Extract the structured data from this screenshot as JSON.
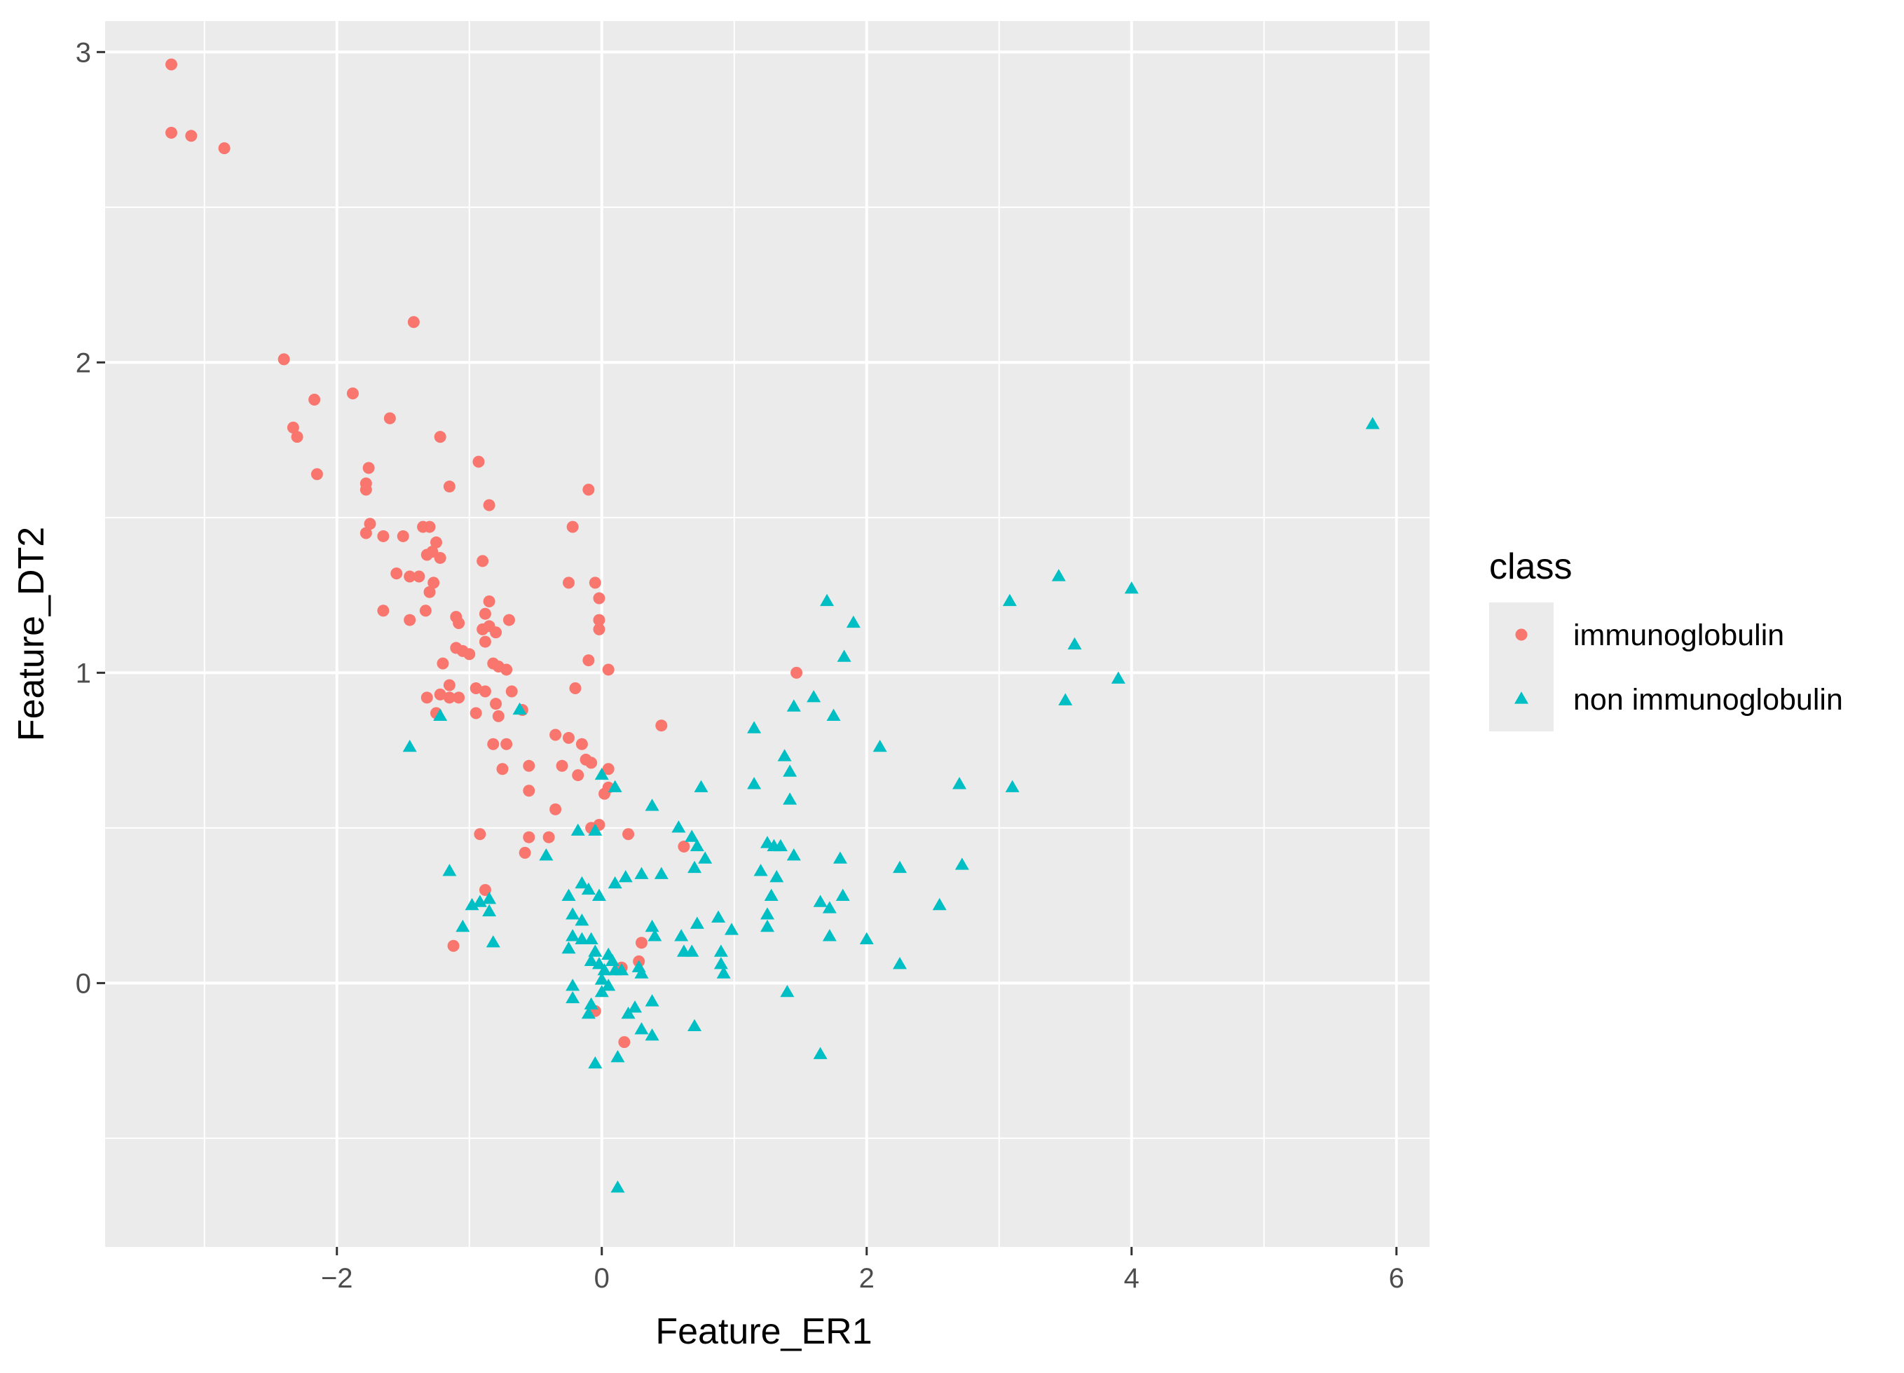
{
  "chart_data": {
    "type": "scatter",
    "xlabel": "Feature_ER1",
    "ylabel": "Feature_DT2",
    "xlim": [
      -3.75,
      6.25
    ],
    "ylim": [
      -0.85,
      3.1
    ],
    "x_ticks": [
      -2,
      0,
      2,
      4,
      6
    ],
    "y_ticks": [
      0,
      1,
      2,
      3
    ],
    "grid": true,
    "legend": {
      "title": "class",
      "position": "right"
    },
    "series": [
      {
        "name": "immunoglobulin",
        "color": "#f8766d",
        "shape": "circle",
        "points": [
          [
            -3.25,
            2.96
          ],
          [
            -3.25,
            2.74
          ],
          [
            -3.1,
            2.73
          ],
          [
            -2.85,
            2.69
          ],
          [
            -1.42,
            2.13
          ],
          [
            -2.4,
            2.01
          ],
          [
            -2.17,
            1.88
          ],
          [
            -1.88,
            1.9
          ],
          [
            -1.6,
            1.82
          ],
          [
            -2.33,
            1.79
          ],
          [
            -2.3,
            1.76
          ],
          [
            -1.22,
            1.76
          ],
          [
            -2.15,
            1.64
          ],
          [
            -1.76,
            1.66
          ],
          [
            -1.78,
            1.61
          ],
          [
            -1.78,
            1.59
          ],
          [
            -1.15,
            1.6
          ],
          [
            -0.93,
            1.68
          ],
          [
            -0.1,
            1.59
          ],
          [
            -0.85,
            1.54
          ],
          [
            -1.35,
            1.47
          ],
          [
            -1.3,
            1.47
          ],
          [
            -1.75,
            1.48
          ],
          [
            -1.78,
            1.45
          ],
          [
            -1.65,
            1.44
          ],
          [
            -1.5,
            1.44
          ],
          [
            -1.25,
            1.42
          ],
          [
            -1.28,
            1.39
          ],
          [
            -1.32,
            1.38
          ],
          [
            -1.22,
            1.37
          ],
          [
            -0.22,
            1.47
          ],
          [
            -0.9,
            1.36
          ],
          [
            -1.55,
            1.32
          ],
          [
            -1.45,
            1.31
          ],
          [
            -1.38,
            1.31
          ],
          [
            -1.27,
            1.29
          ],
          [
            -1.3,
            1.26
          ],
          [
            -0.25,
            1.29
          ],
          [
            -0.05,
            1.29
          ],
          [
            -0.85,
            1.23
          ],
          [
            -1.65,
            1.2
          ],
          [
            -1.33,
            1.2
          ],
          [
            -1.45,
            1.17
          ],
          [
            -1.1,
            1.18
          ],
          [
            -1.08,
            1.16
          ],
          [
            -0.88,
            1.19
          ],
          [
            -0.7,
            1.17
          ],
          [
            -0.85,
            1.15
          ],
          [
            -0.9,
            1.14
          ],
          [
            -0.8,
            1.13
          ],
          [
            -0.02,
            1.24
          ],
          [
            -0.02,
            1.17
          ],
          [
            -0.02,
            1.14
          ],
          [
            -0.88,
            1.1
          ],
          [
            -1.1,
            1.08
          ],
          [
            -1.05,
            1.07
          ],
          [
            -1.0,
            1.06
          ],
          [
            -1.2,
            1.03
          ],
          [
            -0.82,
            1.03
          ],
          [
            -0.78,
            1.02
          ],
          [
            -0.72,
            1.01
          ],
          [
            -0.1,
            1.04
          ],
          [
            0.05,
            1.01
          ],
          [
            -1.15,
            0.96
          ],
          [
            -0.95,
            0.95
          ],
          [
            -0.88,
            0.94
          ],
          [
            -0.68,
            0.94
          ],
          [
            -1.32,
            0.92
          ],
          [
            -1.22,
            0.93
          ],
          [
            -1.15,
            0.92
          ],
          [
            -1.08,
            0.92
          ],
          [
            -0.8,
            0.9
          ],
          [
            -0.6,
            0.88
          ],
          [
            -0.2,
            0.95
          ],
          [
            -1.25,
            0.87
          ],
          [
            -0.95,
            0.87
          ],
          [
            -0.78,
            0.86
          ],
          [
            1.47,
            1.0
          ],
          [
            0.45,
            0.83
          ],
          [
            -0.35,
            0.8
          ],
          [
            -0.25,
            0.79
          ],
          [
            -0.15,
            0.77
          ],
          [
            -0.82,
            0.77
          ],
          [
            -0.72,
            0.77
          ],
          [
            -0.12,
            0.72
          ],
          [
            -0.08,
            0.71
          ],
          [
            -0.3,
            0.7
          ],
          [
            -0.55,
            0.7
          ],
          [
            -0.75,
            0.69
          ],
          [
            0.05,
            0.69
          ],
          [
            -0.18,
            0.67
          ],
          [
            0.05,
            0.63
          ],
          [
            0.02,
            0.61
          ],
          [
            -0.55,
            0.62
          ],
          [
            -0.35,
            0.56
          ],
          [
            -0.08,
            0.5
          ],
          [
            -0.02,
            0.51
          ],
          [
            -0.55,
            0.47
          ],
          [
            -0.4,
            0.47
          ],
          [
            -0.92,
            0.48
          ],
          [
            0.2,
            0.48
          ],
          [
            0.62,
            0.44
          ],
          [
            -0.58,
            0.42
          ],
          [
            -0.88,
            0.3
          ],
          [
            -1.12,
            0.12
          ],
          [
            0.3,
            0.13
          ],
          [
            0.28,
            0.07
          ],
          [
            0.15,
            0.05
          ],
          [
            -0.05,
            -0.09
          ],
          [
            0.17,
            -0.19
          ]
        ]
      },
      {
        "name": "non immunoglobulin",
        "color": "#00bfc4",
        "shape": "triangle",
        "points": [
          [
            5.82,
            1.8
          ],
          [
            4.0,
            1.27
          ],
          [
            3.45,
            1.31
          ],
          [
            3.08,
            1.23
          ],
          [
            3.57,
            1.09
          ],
          [
            3.9,
            0.98
          ],
          [
            3.5,
            0.91
          ],
          [
            3.1,
            0.63
          ],
          [
            2.7,
            0.64
          ],
          [
            2.72,
            0.38
          ],
          [
            2.55,
            0.25
          ],
          [
            2.25,
            0.37
          ],
          [
            2.25,
            0.06
          ],
          [
            1.7,
            1.23
          ],
          [
            1.9,
            1.16
          ],
          [
            1.83,
            1.05
          ],
          [
            1.6,
            0.92
          ],
          [
            1.45,
            0.89
          ],
          [
            1.75,
            0.86
          ],
          [
            1.15,
            0.82
          ],
          [
            2.1,
            0.76
          ],
          [
            1.38,
            0.73
          ],
          [
            1.42,
            0.68
          ],
          [
            1.15,
            0.64
          ],
          [
            1.42,
            0.59
          ],
          [
            1.45,
            0.41
          ],
          [
            1.8,
            0.4
          ],
          [
            1.25,
            0.45
          ],
          [
            1.3,
            0.44
          ],
          [
            1.35,
            0.44
          ],
          [
            1.2,
            0.36
          ],
          [
            1.32,
            0.34
          ],
          [
            1.28,
            0.28
          ],
          [
            1.25,
            0.22
          ],
          [
            1.25,
            0.18
          ],
          [
            1.65,
            0.26
          ],
          [
            1.72,
            0.24
          ],
          [
            1.82,
            0.28
          ],
          [
            1.72,
            0.15
          ],
          [
            2.0,
            0.14
          ],
          [
            1.4,
            -0.03
          ],
          [
            1.65,
            -0.23
          ],
          [
            0.75,
            0.63
          ],
          [
            0.58,
            0.5
          ],
          [
            0.68,
            0.47
          ],
          [
            0.72,
            0.44
          ],
          [
            0.78,
            0.4
          ],
          [
            0.7,
            0.37
          ],
          [
            0.38,
            0.57
          ],
          [
            0.45,
            0.35
          ],
          [
            0.3,
            0.35
          ],
          [
            0.18,
            0.34
          ],
          [
            0.1,
            0.32
          ],
          [
            0.88,
            0.21
          ],
          [
            0.98,
            0.17
          ],
          [
            0.72,
            0.19
          ],
          [
            0.6,
            0.15
          ],
          [
            0.62,
            0.1
          ],
          [
            0.68,
            0.1
          ],
          [
            0.9,
            0.1
          ],
          [
            0.9,
            0.06
          ],
          [
            0.92,
            0.03
          ],
          [
            0.38,
            0.18
          ],
          [
            0.4,
            0.15
          ],
          [
            0.28,
            0.05
          ],
          [
            0.3,
            0.03
          ],
          [
            0.38,
            -0.06
          ],
          [
            0.25,
            -0.08
          ],
          [
            0.2,
            -0.1
          ],
          [
            0.3,
            -0.15
          ],
          [
            0.38,
            -0.17
          ],
          [
            0.7,
            -0.14
          ],
          [
            0.12,
            -0.24
          ],
          [
            -0.05,
            -0.26
          ],
          [
            0.12,
            -0.66
          ],
          [
            0.0,
            0.67
          ],
          [
            0.1,
            0.63
          ],
          [
            -0.18,
            0.49
          ],
          [
            -0.05,
            0.49
          ],
          [
            -0.15,
            0.32
          ],
          [
            -0.1,
            0.3
          ],
          [
            -0.02,
            0.28
          ],
          [
            -0.25,
            0.28
          ],
          [
            -0.22,
            0.22
          ],
          [
            -0.15,
            0.2
          ],
          [
            -0.22,
            0.15
          ],
          [
            -0.25,
            0.11
          ],
          [
            -0.15,
            0.14
          ],
          [
            -0.08,
            0.14
          ],
          [
            -0.05,
            0.1
          ],
          [
            -0.08,
            0.07
          ],
          [
            0.05,
            0.09
          ],
          [
            0.08,
            0.07
          ],
          [
            -0.02,
            0.06
          ],
          [
            0.02,
            0.04
          ],
          [
            0.1,
            0.04
          ],
          [
            0.15,
            0.04
          ],
          [
            0.0,
            0.01
          ],
          [
            0.05,
            -0.01
          ],
          [
            -0.22,
            -0.01
          ],
          [
            -0.22,
            -0.05
          ],
          [
            -0.08,
            -0.07
          ],
          [
            0.0,
            -0.03
          ],
          [
            -0.1,
            -0.1
          ],
          [
            -0.42,
            0.41
          ],
          [
            -0.85,
            0.27
          ],
          [
            -0.92,
            0.26
          ],
          [
            -0.85,
            0.23
          ],
          [
            -0.98,
            0.25
          ],
          [
            -1.15,
            0.36
          ],
          [
            -1.05,
            0.18
          ],
          [
            -0.82,
            0.13
          ],
          [
            -1.45,
            0.76
          ],
          [
            -1.22,
            0.86
          ],
          [
            -0.62,
            0.88
          ]
        ]
      }
    ]
  }
}
